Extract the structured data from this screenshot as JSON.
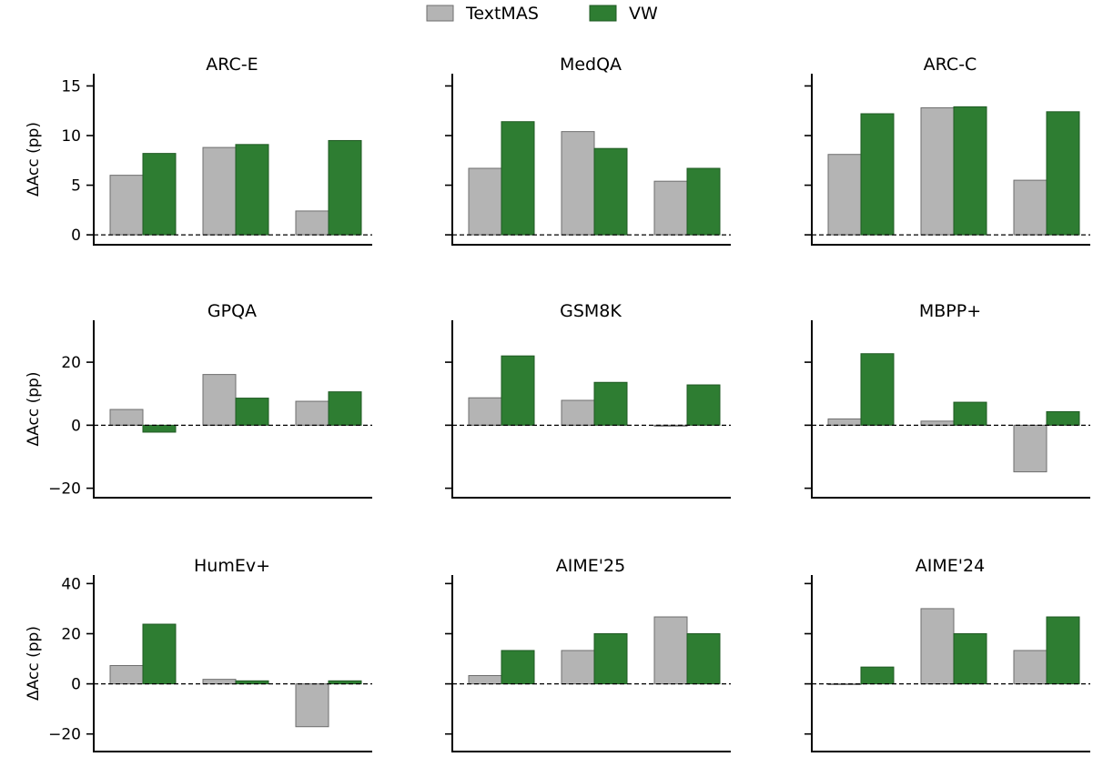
{
  "legend": {
    "items": [
      {
        "label": "TextMAS",
        "color": "#b4b4b4"
      },
      {
        "label": "VW",
        "color": "#2e7d32"
      }
    ]
  },
  "chart_data": {
    "type": "bar",
    "layout": "3x3 grid of grouped bar charts, legend top-center",
    "ylabel": "ΔAcc (pp)",
    "series_names": [
      "TextMAS",
      "VW"
    ],
    "series_colors": {
      "TextMAS": "#b4b4b4",
      "VW": "#2e7d32"
    },
    "baseline": 0,
    "panels": [
      {
        "title": "ARC-E",
        "ylim": [
          -1,
          15.5
        ],
        "yticks": [
          0,
          5,
          10,
          15
        ],
        "series": [
          {
            "name": "TextMAS",
            "values": [
              6.0,
              8.8,
              2.4
            ]
          },
          {
            "name": "VW",
            "values": [
              8.2,
              9.1,
              9.5
            ]
          }
        ]
      },
      {
        "title": "MedQA",
        "ylim": [
          -1,
          15.5
        ],
        "yticks": [
          0,
          5,
          10,
          15
        ],
        "series": [
          {
            "name": "TextMAS",
            "values": [
              6.7,
              10.4,
              5.4
            ]
          },
          {
            "name": "VW",
            "values": [
              11.4,
              8.7,
              6.7
            ]
          }
        ]
      },
      {
        "title": "ARC-C",
        "ylim": [
          -1,
          15.5
        ],
        "yticks": [
          0,
          5,
          10,
          15
        ],
        "series": [
          {
            "name": "TextMAS",
            "values": [
              8.1,
              12.8,
              5.5
            ]
          },
          {
            "name": "VW",
            "values": [
              12.2,
              12.9,
              12.4
            ]
          }
        ]
      },
      {
        "title": "GPQA",
        "ylim": [
          -23,
          31
        ],
        "yticks": [
          -20,
          0,
          20
        ],
        "series": [
          {
            "name": "TextMAS",
            "values": [
              5.0,
              16.1,
              7.6
            ]
          },
          {
            "name": "VW",
            "values": [
              -2.2,
              8.6,
              10.6
            ]
          }
        ]
      },
      {
        "title": "GSM8K",
        "ylim": [
          -23,
          31
        ],
        "yticks": [
          -20,
          0,
          20
        ],
        "series": [
          {
            "name": "TextMAS",
            "values": [
              8.7,
              7.9,
              -0.3
            ]
          },
          {
            "name": "VW",
            "values": [
              22.0,
              13.6,
              12.8
            ]
          }
        ]
      },
      {
        "title": "MBPP+",
        "ylim": [
          -23,
          31
        ],
        "yticks": [
          -20,
          0,
          20
        ],
        "series": [
          {
            "name": "TextMAS",
            "values": [
              2.0,
              1.3,
              -14.8
            ]
          },
          {
            "name": "VW",
            "values": [
              22.7,
              7.3,
              4.3
            ]
          }
        ]
      },
      {
        "title": "HumEv+",
        "ylim": [
          -27,
          40.5
        ],
        "yticks": [
          -20,
          0,
          20,
          40
        ],
        "series": [
          {
            "name": "TextMAS",
            "values": [
              7.3,
              1.8,
              -17.1
            ]
          },
          {
            "name": "VW",
            "values": [
              23.8,
              1.2,
              1.2
            ]
          }
        ]
      },
      {
        "title": "AIME'25",
        "ylim": [
          -27,
          40.5
        ],
        "yticks": [
          -20,
          0,
          20,
          40
        ],
        "series": [
          {
            "name": "TextMAS",
            "values": [
              3.3,
              13.3,
              26.7
            ]
          },
          {
            "name": "VW",
            "values": [
              13.3,
              20.0,
              20.0
            ]
          }
        ]
      },
      {
        "title": "AIME'24",
        "ylim": [
          -27,
          40.5
        ],
        "yticks": [
          -20,
          0,
          20,
          40
        ],
        "series": [
          {
            "name": "TextMAS",
            "values": [
              0.0,
              30.0,
              13.3
            ]
          },
          {
            "name": "VW",
            "values": [
              6.7,
              20.0,
              26.7
            ]
          }
        ]
      }
    ]
  }
}
